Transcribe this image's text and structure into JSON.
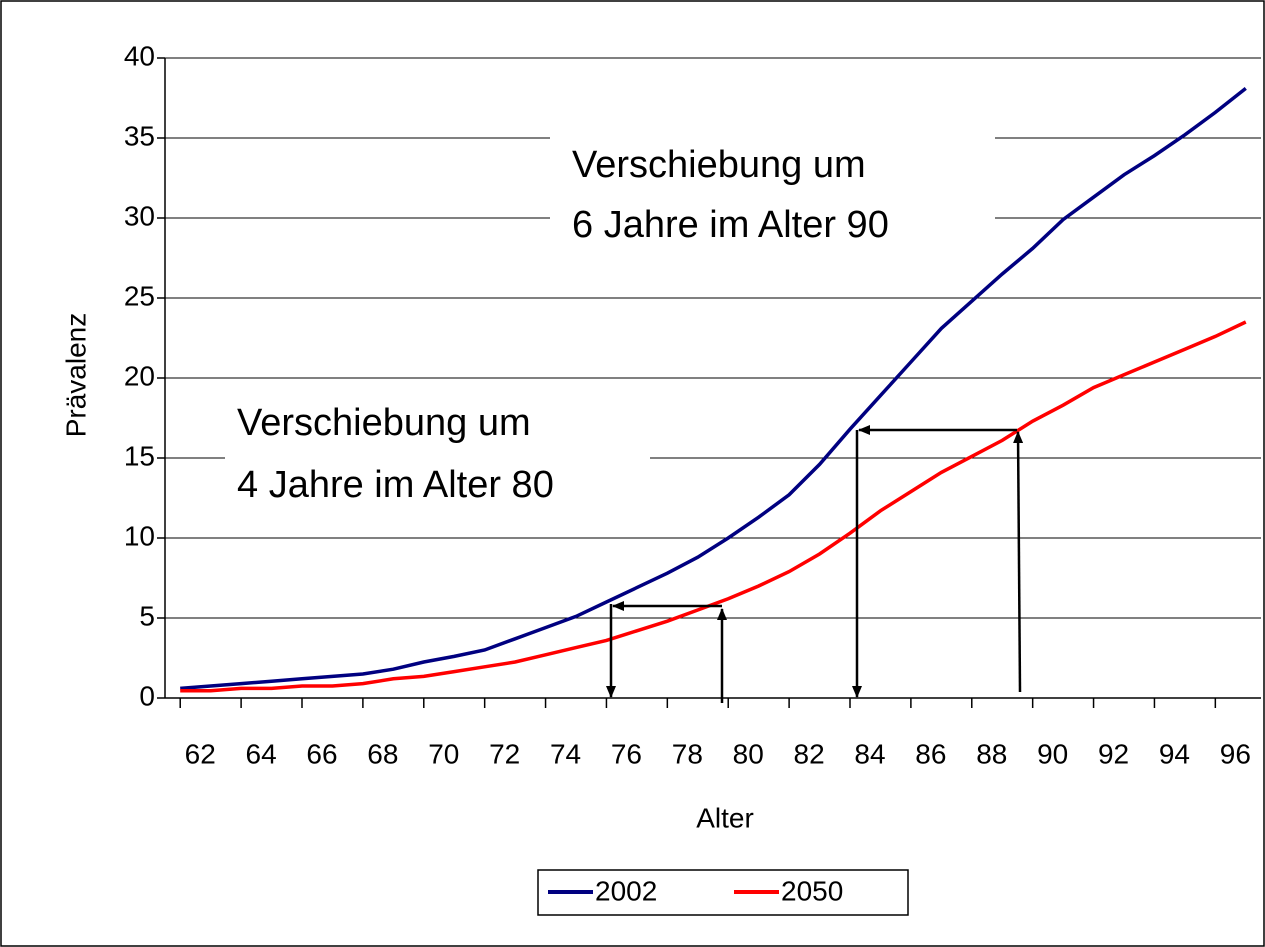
{
  "chart_data": {
    "type": "line",
    "x_label": "Alter",
    "y_label": "Prävalenz",
    "x": [
      62,
      63,
      64,
      65,
      66,
      67,
      68,
      69,
      70,
      71,
      72,
      73,
      74,
      75,
      76,
      77,
      78,
      79,
      80,
      81,
      82,
      83,
      84,
      85,
      86,
      87,
      88,
      89,
      90,
      91,
      92,
      93,
      94,
      95,
      96,
      97
    ],
    "series": [
      {
        "name": "2002",
        "color": "#000080",
        "values": [
          0.6,
          0.75,
          0.9,
          1.05,
          1.2,
          1.35,
          1.5,
          1.8,
          2.25,
          2.6,
          3.0,
          3.7,
          4.4,
          5.1,
          6.0,
          6.9,
          7.8,
          8.8,
          10.0,
          11.3,
          12.7,
          14.6,
          16.8,
          18.9,
          21.0,
          23.1,
          24.8,
          26.5,
          28.1,
          29.9,
          31.3,
          32.7,
          33.9,
          35.2,
          36.6,
          38.1
        ]
      },
      {
        "name": "2050",
        "color": "#ff0000",
        "values": [
          0.45,
          0.45,
          0.6,
          0.6,
          0.75,
          0.75,
          0.9,
          1.2,
          1.35,
          1.65,
          1.95,
          2.25,
          2.7,
          3.15,
          3.6,
          4.2,
          4.8,
          5.5,
          6.2,
          7.0,
          7.9,
          9.0,
          10.3,
          11.7,
          12.9,
          14.1,
          15.1,
          16.1,
          17.3,
          18.3,
          19.4,
          20.2,
          21.0,
          21.8,
          22.6,
          23.5
        ]
      }
    ],
    "xlim": [
      61.5,
      97.5
    ],
    "xticks": [
      62,
      64,
      66,
      68,
      70,
      72,
      74,
      76,
      78,
      80,
      82,
      84,
      86,
      88,
      90,
      92,
      94,
      96
    ],
    "ylim": [
      0,
      40
    ],
    "yticks": [
      0,
      5,
      10,
      15,
      20,
      25,
      30,
      35,
      40
    ],
    "grid": true,
    "legend_position": "bottom",
    "annotations": [
      {
        "lines": [
          "Verschiebung um",
          "6 Jahre im Alter 90"
        ]
      },
      {
        "lines": [
          "Verschiebung um",
          "4 Jahre im Alter 80"
        ]
      }
    ]
  }
}
